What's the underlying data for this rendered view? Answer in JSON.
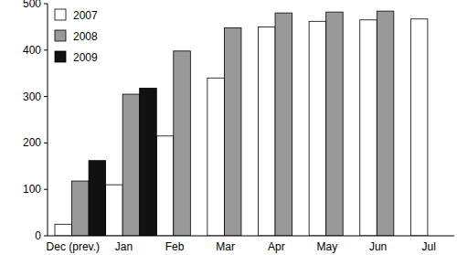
{
  "chart_data": {
    "type": "bar",
    "categories": [
      "Dec (prev.)",
      "Jan",
      "Feb",
      "Mar",
      "Apr",
      "May",
      "Jun",
      "Jul"
    ],
    "series": [
      {
        "name": "2007",
        "color": "#ffffff",
        "values": [
          25,
          110,
          215,
          340,
          450,
          462,
          465,
          467
        ]
      },
      {
        "name": "2008",
        "color": "#999999",
        "values": [
          118,
          305,
          398,
          448,
          480,
          482,
          484,
          null
        ]
      },
      {
        "name": "2009",
        "color": "#111111",
        "values": [
          162,
          318,
          null,
          null,
          null,
          null,
          null,
          null
        ]
      }
    ],
    "ylim": [
      0,
      500
    ],
    "yticks": [
      0,
      100,
      200,
      300,
      400,
      500
    ],
    "grid": false,
    "legend": "top-left"
  }
}
